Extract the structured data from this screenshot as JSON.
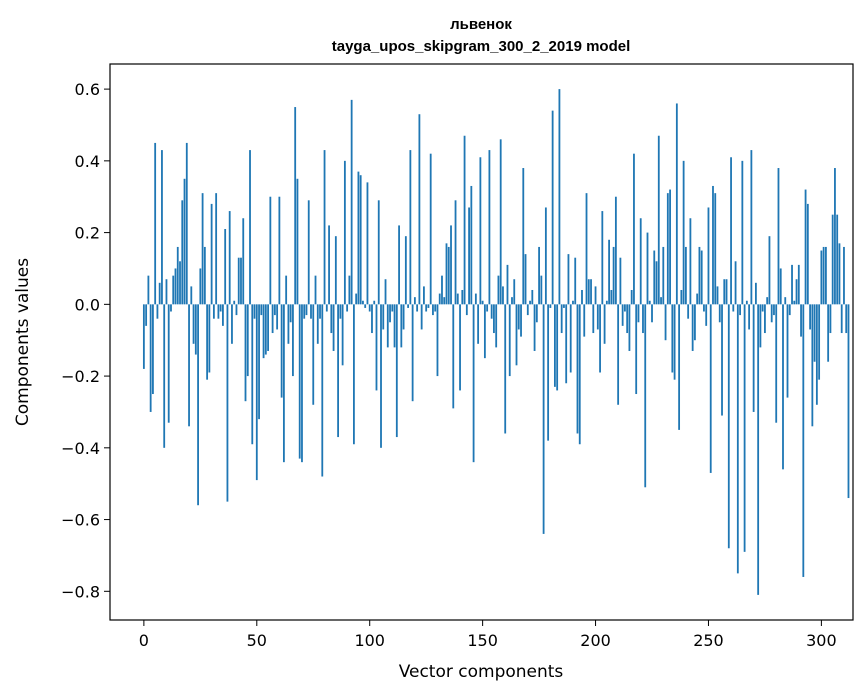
{
  "chart_data": {
    "type": "bar",
    "title": "львенок",
    "subtitle": "tayga_upos_skipgram_300_2_2019 model",
    "xlabel": "Vector components",
    "ylabel": "Components values",
    "xlim": [
      -15,
      314
    ],
    "ylim": [
      -0.88,
      0.67
    ],
    "xticks": [
      0,
      50,
      100,
      150,
      200,
      250,
      300
    ],
    "yticks": [
      -0.8,
      -0.6,
      -0.4,
      -0.2,
      0.0,
      0.2,
      0.4,
      0.6
    ],
    "ytick_labels": [
      "−0.8",
      "−0.6",
      "−0.4",
      "−0.2",
      "0.0",
      "0.2",
      "0.4",
      "0.6"
    ],
    "color": "#1f77b4",
    "grid": false,
    "values": [
      -0.18,
      -0.06,
      0.08,
      -0.3,
      -0.25,
      0.45,
      -0.04,
      0.06,
      0.43,
      -0.4,
      0.07,
      -0.33,
      -0.02,
      0.08,
      0.1,
      0.16,
      0.12,
      0.29,
      0.35,
      0.45,
      -0.34,
      0.05,
      -0.11,
      -0.14,
      -0.56,
      0.1,
      0.31,
      0.16,
      -0.21,
      -0.19,
      0.28,
      -0.04,
      0.31,
      -0.04,
      -0.02,
      -0.06,
      0.21,
      -0.55,
      0.26,
      -0.11,
      0.01,
      -0.03,
      0.13,
      0.13,
      0.24,
      -0.27,
      -0.2,
      0.43,
      -0.39,
      -0.04,
      -0.49,
      -0.32,
      -0.03,
      -0.15,
      -0.14,
      -0.13,
      0.3,
      -0.08,
      -0.03,
      -0.07,
      0.3,
      -0.26,
      -0.44,
      0.08,
      -0.11,
      -0.05,
      -0.2,
      0.55,
      0.35,
      -0.43,
      -0.44,
      -0.04,
      -0.03,
      0.29,
      -0.04,
      -0.28,
      0.08,
      -0.11,
      -0.04,
      -0.48,
      0.43,
      -0.02,
      0.22,
      -0.08,
      -0.13,
      0.19,
      -0.37,
      -0.04,
      -0.17,
      0.4,
      -0.02,
      0.08,
      0.57,
      -0.39,
      0.03,
      0.37,
      0.36,
      0.01,
      -0.01,
      0.34,
      -0.02,
      -0.08,
      0.01,
      -0.24,
      0.29,
      -0.4,
      -0.07,
      0.07,
      -0.12,
      -0.05,
      -0.02,
      -0.12,
      -0.37,
      0.22,
      -0.12,
      -0.07,
      0.19,
      -0.01,
      0.43,
      -0.27,
      0.02,
      -0.02,
      0.53,
      -0.07,
      0.05,
      -0.02,
      -0.01,
      0.42,
      -0.03,
      -0.02,
      -0.2,
      0.03,
      0.08,
      0.02,
      0.17,
      0.16,
      0.22,
      -0.29,
      0.29,
      0.03,
      -0.24,
      0.04,
      0.47,
      -0.03,
      0.27,
      0.33,
      -0.44,
      0.03,
      -0.11,
      0.41,
      0.01,
      -0.15,
      -0.02,
      0.43,
      -0.04,
      -0.08,
      -0.12,
      0.08,
      0.46,
      0.05,
      -0.36,
      0.11,
      -0.2,
      0.02,
      0.07,
      -0.17,
      -0.07,
      -0.09,
      0.38,
      0.14,
      -0.03,
      0.01,
      0.04,
      -0.13,
      -0.05,
      0.16,
      0.08,
      -0.64,
      0.27,
      -0.38,
      -0.01,
      0.54,
      -0.23,
      -0.24,
      0.6,
      -0.08,
      -0.01,
      -0.22,
      0.14,
      -0.19,
      0.01,
      0.13,
      -0.36,
      -0.39,
      0.04,
      -0.09,
      0.31,
      0.07,
      0.07,
      -0.08,
      0.05,
      -0.07,
      -0.19,
      0.26,
      -0.11,
      0.01,
      0.18,
      0.04,
      0.16,
      0.3,
      -0.28,
      0.13,
      -0.06,
      -0.02,
      -0.08,
      -0.13,
      0.04,
      0.42,
      -0.25,
      -0.05,
      0.24,
      -0.08,
      -0.51,
      0.2,
      0.01,
      -0.05,
      0.15,
      0.12,
      0.47,
      0.02,
      0.16,
      -0.1,
      0.31,
      0.32,
      -0.19,
      -0.21,
      0.56,
      -0.35,
      0.04,
      0.4,
      0.16,
      -0.04,
      0.24,
      -0.13,
      -0.1,
      0.03,
      0.16,
      0.15,
      -0.02,
      -0.06,
      0.27,
      -0.47,
      0.33,
      0.31,
      0.05,
      -0.05,
      -0.31,
      0.07,
      0.07,
      -0.68,
      0.41,
      -0.02,
      0.12,
      -0.75,
      -0.03,
      0.4,
      -0.69,
      0.01,
      -0.07,
      0.43,
      -0.3,
      0.06,
      -0.81,
      -0.12,
      -0.02,
      -0.08,
      0.02,
      0.19,
      -0.05,
      -0.03,
      -0.33,
      0.38,
      0.1,
      -0.46,
      0.02,
      -0.26,
      -0.03,
      0.11,
      0.01,
      0.07,
      0.11,
      -0.09,
      -0.76,
      0.32,
      0.28,
      -0.07,
      -0.34,
      -0.16,
      -0.28,
      -0.21,
      0.15,
      0.16,
      0.16,
      -0.16,
      -0.08,
      0.25,
      0.38,
      0.25,
      0.17,
      -0.08,
      0.16,
      -0.08,
      -0.54
    ]
  }
}
